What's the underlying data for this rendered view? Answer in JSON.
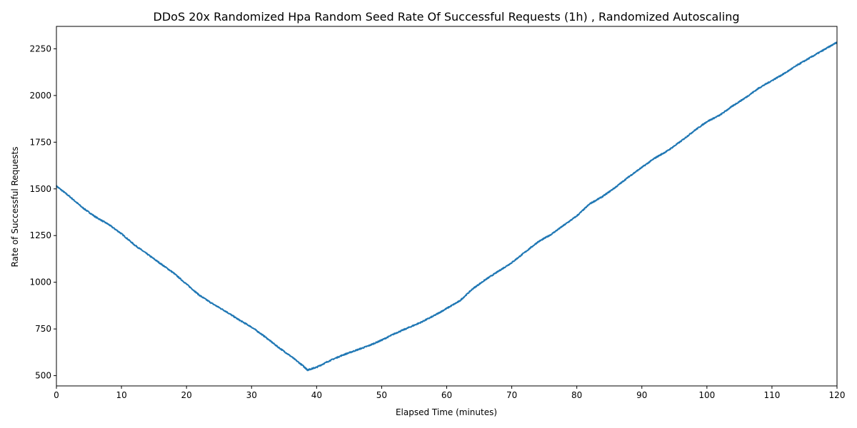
{
  "chart_data": {
    "type": "line",
    "title": "DDoS 20x Randomized Hpa Random Seed Rate Of Successful Requests (1h) , Randomized Autoscaling",
    "xlabel": "Elapsed Time (minutes)",
    "ylabel": "Rate of Successful Requests",
    "xlim": [
      0,
      120
    ],
    "ylim": [
      445,
      2370
    ],
    "xticks": [
      0,
      10,
      20,
      30,
      40,
      50,
      60,
      70,
      80,
      90,
      100,
      110,
      120
    ],
    "yticks": [
      500,
      750,
      1000,
      1250,
      1500,
      1750,
      2000,
      2250
    ],
    "grid": false,
    "legend": "none",
    "series": [
      {
        "color": "#1f77b4",
        "x": [
          0,
          2,
          4,
          6,
          8,
          10,
          12,
          14,
          16,
          18,
          20,
          22,
          24,
          26,
          28,
          30,
          32,
          34,
          36,
          38,
          38.6,
          40,
          42,
          44,
          46,
          48,
          50,
          52,
          54,
          56,
          58,
          60,
          62,
          64,
          66,
          68,
          70,
          72,
          74,
          76,
          78,
          80,
          82,
          84,
          86,
          88,
          90,
          92,
          94,
          96,
          98,
          100,
          102,
          104,
          106,
          108,
          110,
          112,
          114,
          116,
          118,
          120
        ],
        "y": [
          1515,
          1460,
          1400,
          1350,
          1310,
          1260,
          1200,
          1150,
          1100,
          1050,
          990,
          930,
          885,
          845,
          800,
          760,
          710,
          655,
          605,
          550,
          530,
          545,
          580,
          610,
          635,
          660,
          690,
          725,
          755,
          785,
          820,
          860,
          900,
          965,
          1015,
          1060,
          1105,
          1160,
          1215,
          1255,
          1305,
          1355,
          1420,
          1460,
          1510,
          1565,
          1615,
          1665,
          1705,
          1755,
          1810,
          1860,
          1895,
          1945,
          1990,
          2040,
          2080,
          2120,
          2165,
          2205,
          2245,
          2285
        ]
      }
    ]
  }
}
